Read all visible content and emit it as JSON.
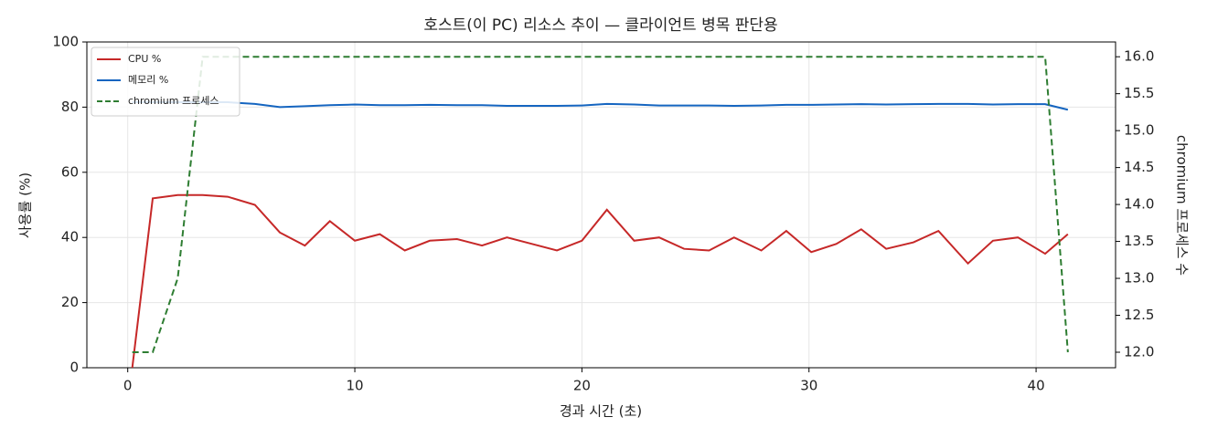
{
  "chart_data": {
    "type": "line",
    "title": "호스트(이 PC) 리소스 추이 — 클라이언트 병목 판단용",
    "xlabel": "경과 시간 (초)",
    "ylabel": "사용률 (%)",
    "y2label": "chromium 프로세스 수",
    "x": [
      0.2,
      1.1,
      2.2,
      3.3,
      4.4,
      5.6,
      6.7,
      7.8,
      8.9,
      10.0,
      11.1,
      12.2,
      13.3,
      14.5,
      15.6,
      16.7,
      17.8,
      18.9,
      20.0,
      21.1,
      22.3,
      23.4,
      24.5,
      25.6,
      26.7,
      27.9,
      29.0,
      30.1,
      31.2,
      32.3,
      33.4,
      34.6,
      35.7,
      37.0,
      38.1,
      39.2,
      40.4,
      41.4
    ],
    "series": [
      {
        "name": "CPU %",
        "color": "#c62828",
        "values": [
          0,
          52,
          53,
          53,
          52.5,
          50,
          41.5,
          37.5,
          45,
          39,
          41,
          36,
          39,
          39.5,
          37.5,
          40,
          38,
          36,
          39,
          48.5,
          39,
          40,
          36.5,
          36,
          40,
          36,
          42,
          35.5,
          38,
          42.5,
          36.5,
          38.5,
          42,
          32,
          39,
          40,
          35,
          41
        ]
      },
      {
        "name": "메모리 %",
        "color": "#1565c0",
        "values": [
          81.5,
          81.5,
          81.5,
          81.5,
          81.5,
          81,
          80,
          80.3,
          80.6,
          80.8,
          80.6,
          80.6,
          80.7,
          80.6,
          80.6,
          80.4,
          80.4,
          80.4,
          80.5,
          81,
          80.8,
          80.5,
          80.5,
          80.5,
          80.4,
          80.5,
          80.7,
          80.7,
          80.8,
          80.9,
          80.8,
          80.9,
          81,
          81,
          80.8,
          80.9,
          80.9,
          79.2
        ]
      },
      {
        "name": "chromium 프로세스",
        "color": "#2e7d32",
        "axis": "y2",
        "linestyle": "dashed",
        "values": [
          12,
          12,
          13,
          16,
          16,
          16,
          16,
          16,
          16,
          16,
          16,
          16,
          16,
          16,
          16,
          16,
          16,
          16,
          16,
          16,
          16,
          16,
          16,
          16,
          16,
          16,
          16,
          16,
          16,
          16,
          16,
          16,
          16,
          16,
          16,
          16,
          16,
          12
        ]
      }
    ],
    "xlim": [
      -1.8,
      43.5
    ],
    "xticks": [
      0,
      10,
      20,
      30,
      40
    ],
    "ylim": [
      0,
      100
    ],
    "yticks": [
      0,
      20,
      40,
      60,
      80,
      100
    ],
    "y2lim": [
      11.79,
      16.2
    ],
    "y2ticks": [
      {
        "value": 12,
        "label": "12.0"
      },
      {
        "value": 12.5,
        "label": "12.5"
      },
      {
        "value": 13,
        "label": "13.0"
      },
      {
        "value": 13.5,
        "label": "13.5"
      },
      {
        "value": 14,
        "label": "14.0"
      },
      {
        "value": 14.5,
        "label": "14.5"
      },
      {
        "value": 15,
        "label": "15.0"
      },
      {
        "value": 15.5,
        "label": "15.5"
      },
      {
        "value": 16,
        "label": "16.0"
      }
    ],
    "grid": true,
    "legend": "upper-left"
  }
}
